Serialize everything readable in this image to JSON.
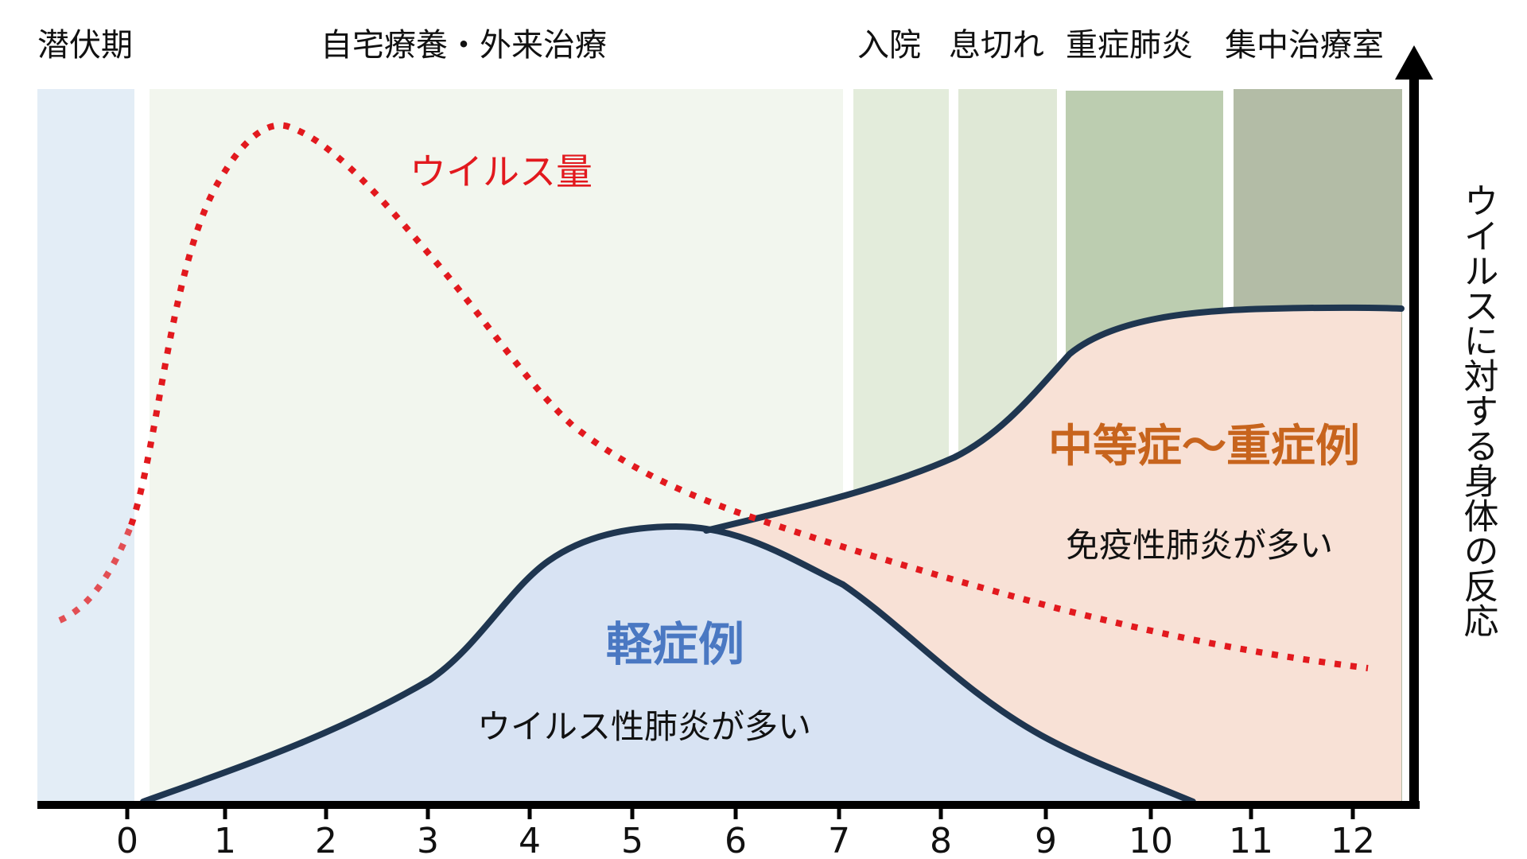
{
  "phases": [
    {
      "label": "潜伏期",
      "color": "#e3edf6"
    },
    {
      "label": "自宅療養・外来治療",
      "color": "#f2f6ee"
    },
    {
      "label": "入院",
      "color": "#e3ecdb"
    },
    {
      "label": "息切れ",
      "color": "#dfe8d6"
    },
    {
      "label": "重症肺炎",
      "color": "#bccdb0"
    },
    {
      "label": "集中治療室",
      "color": "#b3bca6"
    }
  ],
  "axis": {
    "x_ticks": [
      "0",
      "1",
      "2",
      "3",
      "4",
      "5",
      "6",
      "7",
      "8",
      "9",
      "10",
      "11",
      "12"
    ],
    "y_label": "ウイルスに対する身体の反応"
  },
  "annotations": {
    "virus": {
      "text": "ウイルス量",
      "color": "#e2191e"
    },
    "mild": {
      "title": "軽症例",
      "title_color": "#4a78c2",
      "desc": "ウイルス性肺炎が多い"
    },
    "severe": {
      "title": "中等症～重症例",
      "title_color": "#c7641d",
      "desc": "免疫性肺炎が多い"
    }
  },
  "colors": {
    "curve_stroke": "#1f3650",
    "mild_fill": "#d8e3f3",
    "severe_fill": "#f8e1d6",
    "virus_line": "#e2191e",
    "axis": "#000000"
  }
}
